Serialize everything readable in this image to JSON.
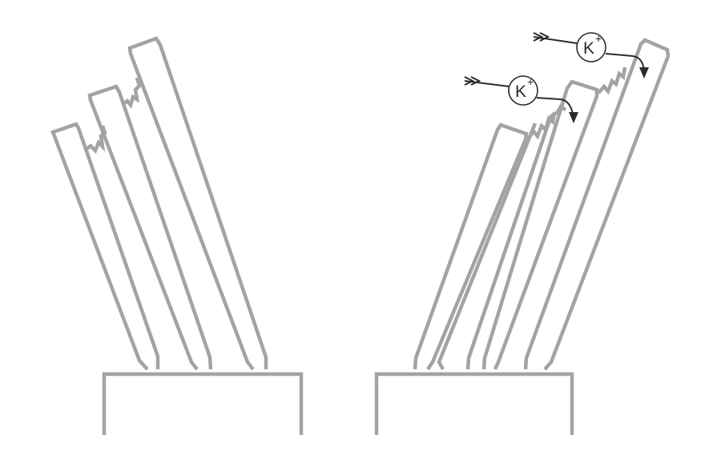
{
  "colors": {
    "outline": "#a3a3a3",
    "ion": "#2b2b2b"
  },
  "panels": [
    {
      "name": "stereocilia-closed",
      "stereocilia_count": 3,
      "tip_links": 2,
      "channels_open": false
    },
    {
      "name": "stereocilia-deflected",
      "stereocilia_count": 4,
      "tip_links": 3,
      "channels_open": true
    }
  ],
  "ions": [
    {
      "symbol": "K",
      "charge": "+"
    },
    {
      "symbol": "K",
      "charge": "+"
    }
  ]
}
